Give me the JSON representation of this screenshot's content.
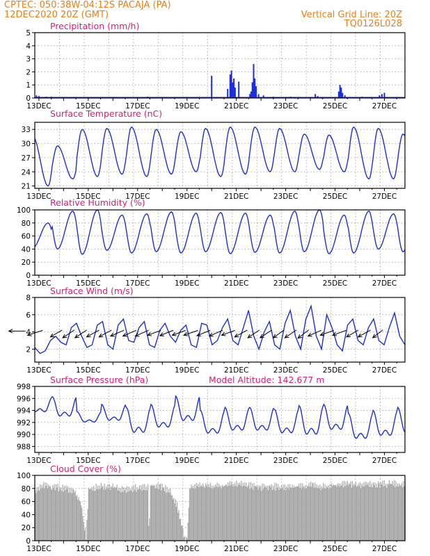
{
  "header": {
    "left_line1": "CPTEC:   050:38W-04:12S   PACAJA (PA)",
    "left_line2": "12DEC2020 20Z (GMT)",
    "right_line1": "Vertical Grid Line: 20Z",
    "right_line2": "TQ0126L028"
  },
  "colors": {
    "header": "#f07c16",
    "panel_title": "#e0187a",
    "series": "#1c2fd6",
    "cloud": "#a8a8a8",
    "grid": "#9a9a9a"
  },
  "x_axis_labels": [
    "13DEC",
    "15DEC",
    "17DEC",
    "19DEC",
    "21DEC",
    "23DEC",
    "25DEC",
    "27DEC"
  ],
  "chart_data": [
    {
      "type": "bar",
      "title": "Precipitation (mm/h)",
      "ylim": [
        0,
        5
      ],
      "yticks": [
        "0",
        "1",
        "2",
        "3",
        "4",
        "5"
      ],
      "grid": true,
      "x_start": "12DEC2020 20Z",
      "x_end": "27DEC2020 20Z",
      "values": [
        {
          "x": 12.9,
          "y": 0.2
        },
        {
          "x": 13.0,
          "y": 0.15
        },
        {
          "x": 13.3,
          "y": 0.1
        },
        {
          "x": 13.5,
          "y": 0.1
        },
        {
          "x": 14.2,
          "y": 0.05
        },
        {
          "x": 15.6,
          "y": 0.05
        },
        {
          "x": 16.7,
          "y": 0.05
        },
        {
          "x": 17.4,
          "y": 0.1
        },
        {
          "x": 19.6,
          "y": 0.05
        },
        {
          "x": 20.0,
          "y": 1.7
        },
        {
          "x": 20.65,
          "y": 0.7
        },
        {
          "x": 20.75,
          "y": 1.8
        },
        {
          "x": 20.8,
          "y": 2.1
        },
        {
          "x": 20.85,
          "y": 1.2
        },
        {
          "x": 20.9,
          "y": 1.5
        },
        {
          "x": 20.95,
          "y": 0.8
        },
        {
          "x": 21.1,
          "y": 1.25
        },
        {
          "x": 21.55,
          "y": 0.3
        },
        {
          "x": 21.6,
          "y": 0.5
        },
        {
          "x": 21.65,
          "y": 1.2
        },
        {
          "x": 21.7,
          "y": 2.6
        },
        {
          "x": 21.75,
          "y": 1.5
        },
        {
          "x": 21.8,
          "y": 0.9
        },
        {
          "x": 21.9,
          "y": 0.3
        },
        {
          "x": 22.1,
          "y": 0.2
        },
        {
          "x": 22.5,
          "y": 0.1
        },
        {
          "x": 23.2,
          "y": 0.1
        },
        {
          "x": 24.2,
          "y": 0.3
        },
        {
          "x": 24.3,
          "y": 0.15
        },
        {
          "x": 25.15,
          "y": 0.5
        },
        {
          "x": 25.2,
          "y": 1.0
        },
        {
          "x": 25.25,
          "y": 0.8
        },
        {
          "x": 25.3,
          "y": 0.4
        },
        {
          "x": 25.4,
          "y": 0.2
        },
        {
          "x": 26.1,
          "y": 0.1
        },
        {
          "x": 26.8,
          "y": 0.2
        },
        {
          "x": 26.9,
          "y": 0.3
        },
        {
          "x": 27.0,
          "y": 0.4
        }
      ]
    },
    {
      "type": "line",
      "title": "Surface Temperature (nC)",
      "ylim": [
        20.5,
        34.5
      ],
      "yticks": [
        "21",
        "24",
        "27",
        "30",
        "33"
      ],
      "grid": true,
      "daily_max": [
        31.5,
        29.5,
        33,
        33.2,
        33.5,
        33,
        32.5,
        33.2,
        33.5,
        33.5,
        33.2,
        32,
        31.8,
        33.5,
        33.2,
        32,
        31.5,
        33,
        32.6,
        33,
        32.4,
        30.5,
        30.8,
        31
      ],
      "daily_min": [
        21,
        22.5,
        23,
        23.5,
        23,
        23.5,
        24,
        23,
        23.5,
        24,
        24,
        24.5,
        24,
        22.5,
        22.5,
        23,
        23,
        23.5,
        23.5,
        23,
        23.5,
        23.5,
        23,
        22.5
      ]
    },
    {
      "type": "line",
      "title": "Relative Humidity (%)",
      "ylim": [
        0,
        100
      ],
      "yticks": [
        "0",
        "20",
        "40",
        "60",
        "80",
        "100"
      ],
      "grid": true,
      "daily_max": [
        80,
        98,
        100,
        92,
        94,
        97,
        95,
        96,
        95,
        92,
        98,
        100,
        92,
        98,
        94,
        97,
        93,
        96,
        98,
        95,
        97,
        96,
        96,
        95
      ],
      "daily_min": [
        42,
        40,
        32,
        38,
        34,
        36,
        34,
        36,
        33,
        35,
        34,
        36,
        33,
        34,
        40,
        36,
        32,
        38,
        36,
        40,
        38,
        45,
        42,
        45
      ]
    },
    {
      "type": "line",
      "title": "Surface Wind (m/s)",
      "ylim": [
        0.5,
        8
      ],
      "yticks": [
        "2",
        "4",
        "6",
        "8"
      ],
      "grid": true,
      "speed": [
        2.2,
        1.5,
        1.8,
        3.0,
        3.5,
        2.8,
        2.5,
        4.5,
        5.0,
        3.5,
        2.2,
        2.5,
        4.8,
        5.2,
        2.5,
        2.0,
        4.8,
        5.5,
        3.0,
        2.8,
        4.5,
        5.2,
        2.5,
        2.2,
        4.2,
        5.0,
        3.5,
        2.8,
        4.2,
        4.8,
        2.5,
        2.2,
        5.0,
        4.8,
        2.5,
        3.0,
        4.5,
        5.5,
        3.0,
        2.5,
        4.5,
        6.5,
        3.5,
        2.0,
        4.0,
        5.2,
        2.5,
        2.0,
        5.0,
        6.5,
        3.5,
        2.0,
        5.5,
        7.0,
        3.5,
        2.0,
        6.0,
        4.5,
        2.5,
        1.8,
        4.8,
        5.5,
        3.0,
        2.5,
        4.5,
        5.5,
        3.0,
        2.5,
        4.5,
        6.2,
        3.5,
        2.5
      ],
      "arrows": [
        {
          "day": 12.4,
          "dx": -1,
          "dy": 0
        },
        {
          "day": 13.1,
          "dx": -0.9,
          "dy": 0.5
        },
        {
          "day": 13.9,
          "dx": -0.7,
          "dy": 0.7
        },
        {
          "day": 14.4,
          "dx": -0.7,
          "dy": 0.8
        },
        {
          "day": 14.9,
          "dx": -0.7,
          "dy": 0.8
        },
        {
          "day": 15.4,
          "dx": -0.75,
          "dy": 0.7
        },
        {
          "day": 15.9,
          "dx": -0.75,
          "dy": 0.7
        },
        {
          "day": 16.4,
          "dx": -0.8,
          "dy": 0.6
        },
        {
          "day": 16.9,
          "dx": -0.8,
          "dy": 0.6
        },
        {
          "day": 17.4,
          "dx": -0.8,
          "dy": 0.6
        },
        {
          "day": 17.9,
          "dx": -0.8,
          "dy": 0.5
        },
        {
          "day": 18.4,
          "dx": -0.8,
          "dy": 0.55
        },
        {
          "day": 18.9,
          "dx": -0.8,
          "dy": 0.5
        },
        {
          "day": 19.4,
          "dx": -0.85,
          "dy": 0.5
        },
        {
          "day": 19.9,
          "dx": -0.8,
          "dy": 0.55
        },
        {
          "day": 20.4,
          "dx": -0.8,
          "dy": 0.6
        },
        {
          "day": 20.9,
          "dx": -0.8,
          "dy": 0.5
        },
        {
          "day": 21.4,
          "dx": -0.75,
          "dy": 0.7
        },
        {
          "day": 21.9,
          "dx": -0.7,
          "dy": 0.8
        },
        {
          "day": 22.4,
          "dx": -0.7,
          "dy": 0.8
        },
        {
          "day": 22.9,
          "dx": -0.65,
          "dy": 0.8
        },
        {
          "day": 23.4,
          "dx": -0.7,
          "dy": 0.8
        },
        {
          "day": 23.9,
          "dx": -0.65,
          "dy": 0.85
        },
        {
          "day": 24.4,
          "dx": -0.8,
          "dy": 0.6
        },
        {
          "day": 24.9,
          "dx": -0.8,
          "dy": 0.5
        },
        {
          "day": 25.4,
          "dx": -0.8,
          "dy": 0.5
        },
        {
          "day": 25.9,
          "dx": -0.7,
          "dy": 0.7
        },
        {
          "day": 26.4,
          "dx": -0.75,
          "dy": 0.7
        },
        {
          "day": 26.9,
          "dx": -0.6,
          "dy": 0.8
        }
      ]
    },
    {
      "type": "line",
      "title": "Surface Pressure (hPa)",
      "annotation": "Model Altitude: 142.677 m",
      "ylim": [
        987,
        998
      ],
      "yticks": [
        "988",
        "990",
        "992",
        "994",
        "996",
        "998"
      ],
      "grid": true,
      "daily_peak": [
        996.2,
        996.3,
        993.8,
        995.0,
        994.5,
        995.0,
        996.4,
        994.0,
        994.5,
        994.5,
        994.2,
        994.8,
        995.0,
        993.5,
        994.0,
        994.5,
        994.5,
        994.5,
        994.0,
        994.0,
        994.0,
        994.5,
        994.5,
        993.5
      ],
      "daily_trough": [
        993.0,
        992.0,
        991.5,
        991.5,
        989.0,
        990.0,
        991.0,
        989.0,
        989.5,
        989.5,
        989.0,
        988.5,
        989.5,
        988.0,
        988.5,
        989.0,
        988.5,
        988.5,
        989.0,
        988.5,
        988.5,
        988.5,
        989.0,
        988.5
      ]
    },
    {
      "type": "bar",
      "title": "Cloud Cover (%)",
      "ylim": [
        0,
        100
      ],
      "yticks": [
        "0",
        "20",
        "40",
        "60",
        "80",
        "100"
      ],
      "grid": true,
      "segments": [
        {
          "day": 12.83,
          "value": 78
        },
        {
          "day": 13.2,
          "value": 88
        },
        {
          "day": 13.6,
          "value": 85
        },
        {
          "day": 14.0,
          "value": 84
        },
        {
          "day": 14.4,
          "value": 80
        },
        {
          "day": 14.7,
          "value": 60
        },
        {
          "day": 14.8,
          "value": 30
        },
        {
          "day": 14.9,
          "value": 8
        },
        {
          "day": 15.0,
          "value": 82
        },
        {
          "day": 15.5,
          "value": 86
        },
        {
          "day": 16.0,
          "value": 85
        },
        {
          "day": 16.5,
          "value": 82
        },
        {
          "day": 17.0,
          "value": 84
        },
        {
          "day": 17.4,
          "value": 86
        },
        {
          "day": 17.45,
          "value": 0
        },
        {
          "day": 17.5,
          "value": 88
        },
        {
          "day": 18.0,
          "value": 85
        },
        {
          "day": 18.3,
          "value": 78
        },
        {
          "day": 18.6,
          "value": 55
        },
        {
          "day": 18.8,
          "value": 20
        },
        {
          "day": 18.9,
          "value": 5
        },
        {
          "day": 19.0,
          "value": 10
        },
        {
          "day": 19.1,
          "value": 85
        },
        {
          "day": 19.5,
          "value": 88
        },
        {
          "day": 20.0,
          "value": 86
        },
        {
          "day": 20.5,
          "value": 87
        },
        {
          "day": 21.0,
          "value": 90
        },
        {
          "day": 21.5,
          "value": 88
        },
        {
          "day": 22.0,
          "value": 85
        },
        {
          "day": 22.5,
          "value": 86
        },
        {
          "day": 23.0,
          "value": 84
        },
        {
          "day": 23.5,
          "value": 86
        },
        {
          "day": 24.0,
          "value": 88
        },
        {
          "day": 24.5,
          "value": 86
        },
        {
          "day": 25.0,
          "value": 88
        },
        {
          "day": 25.5,
          "value": 90
        },
        {
          "day": 26.0,
          "value": 88
        },
        {
          "day": 26.5,
          "value": 90
        },
        {
          "day": 27.0,
          "value": 90
        }
      ]
    }
  ]
}
